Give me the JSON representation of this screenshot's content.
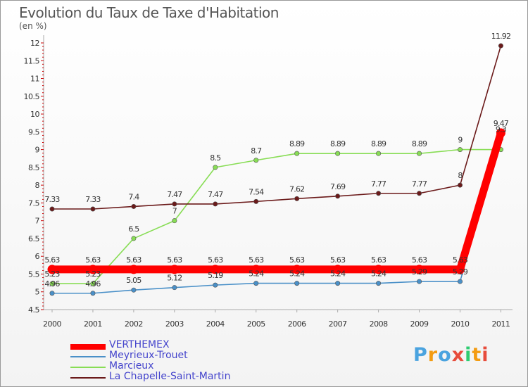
{
  "header": {
    "title": "Evolution du Taux de Taxe d'Habitation",
    "subtitle": "(en %)"
  },
  "logo": {
    "text": "Proxiti"
  },
  "chart_data": {
    "type": "line",
    "x": [
      "2000",
      "2001",
      "2002",
      "2003",
      "2004",
      "2005",
      "2006",
      "2007",
      "2008",
      "2009",
      "2010",
      "2011"
    ],
    "ylim": [
      4.5,
      12
    ],
    "yticks": [
      "4.5",
      "5",
      "5.5",
      "6",
      "6.5",
      "7",
      "7.5",
      "8",
      "8.5",
      "9",
      "9.5",
      "10",
      "10.5",
      "11",
      "11.5",
      "12"
    ],
    "grid": false,
    "legend_position": "bottom-left",
    "series": [
      {
        "name": "VERTHEMEX",
        "color": "#ff0000",
        "values": [
          5.63,
          5.63,
          5.63,
          5.63,
          5.63,
          5.63,
          5.63,
          5.63,
          5.63,
          5.63,
          5.63,
          9.47
        ],
        "labels": [
          "5.63",
          "5.63",
          "5.63",
          "5.63",
          "5.63",
          "5.63",
          "5.63",
          "5.63",
          "5.63",
          "5.63",
          "5.63",
          "9.47"
        ]
      },
      {
        "name": "Meyrieux-Trouet",
        "color": "#4a90c8",
        "values": [
          4.96,
          4.96,
          5.05,
          5.12,
          5.19,
          5.24,
          5.24,
          5.24,
          5.24,
          5.29,
          5.29,
          9.3
        ],
        "labels": [
          "4.96",
          "4.96",
          "5.05",
          "5.12",
          "5.19",
          "5.24",
          "5.24",
          "5.24",
          "5.24",
          "5.29",
          "5.29",
          "9.3"
        ]
      },
      {
        "name": "Marcieux",
        "color": "#88dd55",
        "values": [
          5.23,
          5.23,
          6.5,
          7,
          8.5,
          8.7,
          8.89,
          8.89,
          8.89,
          8.89,
          9,
          9
        ],
        "labels": [
          "5.23",
          "5.23",
          "6.5",
          "7",
          "8.5",
          "8.7",
          "8.89",
          "8.89",
          "8.89",
          "8.89",
          "9",
          ""
        ]
      },
      {
        "name": "La Chapelle-Saint-Martin",
        "color": "#6b1a1a",
        "values": [
          7.33,
          7.33,
          7.4,
          7.47,
          7.47,
          7.54,
          7.62,
          7.69,
          7.77,
          7.77,
          8,
          11.92
        ],
        "labels": [
          "7.33",
          "7.33",
          "7.4",
          "7.47",
          "7.47",
          "7.54",
          "7.62",
          "7.69",
          "7.77",
          "7.77",
          "8",
          "11.92"
        ]
      }
    ]
  }
}
